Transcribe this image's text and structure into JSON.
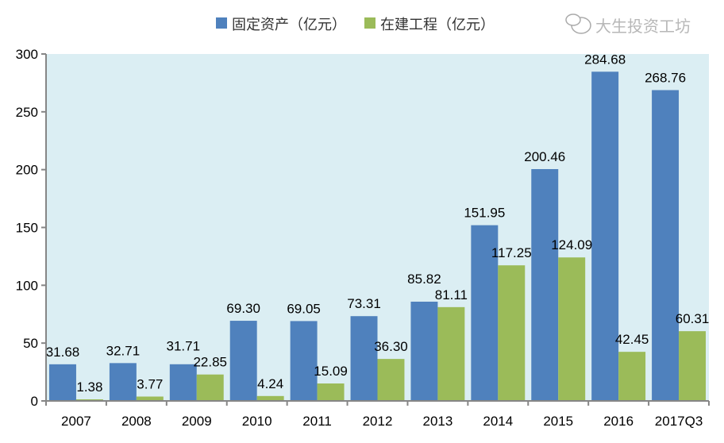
{
  "chart_data": {
    "type": "bar",
    "categories": [
      "2007",
      "2008",
      "2009",
      "2010",
      "2011",
      "2012",
      "2013",
      "2014",
      "2015",
      "2016",
      "2017Q3"
    ],
    "series": [
      {
        "name": "固定资产（亿元）",
        "color": "#4f81bd",
        "values": [
          31.68,
          32.71,
          31.71,
          69.3,
          69.05,
          73.31,
          85.82,
          151.95,
          200.46,
          284.68,
          268.76
        ],
        "labels": [
          "31.68",
          "32.71",
          "31.71",
          "69.30",
          "69.05",
          "73.31",
          "85.82",
          "151.95",
          "200.46",
          "284.68",
          "268.76"
        ]
      },
      {
        "name": "在建工程（亿元）",
        "color": "#9bbb59",
        "values": [
          1.38,
          3.77,
          22.85,
          4.24,
          15.09,
          36.3,
          81.11,
          117.25,
          124.09,
          42.45,
          60.31
        ],
        "labels": [
          "1.38",
          "3.77",
          "22.85",
          "4.24",
          "15.09",
          "36.30",
          "81.11",
          "117.25",
          "124.09",
          "42.45",
          "60.31"
        ]
      }
    ],
    "yticks": [
      "0",
      "50",
      "100",
      "150",
      "200",
      "250",
      "300"
    ],
    "ylim": [
      0,
      300
    ],
    "grid": false,
    "legend": "top",
    "plot_background": "#dbeef3"
  },
  "watermark": "大生投资工坊"
}
